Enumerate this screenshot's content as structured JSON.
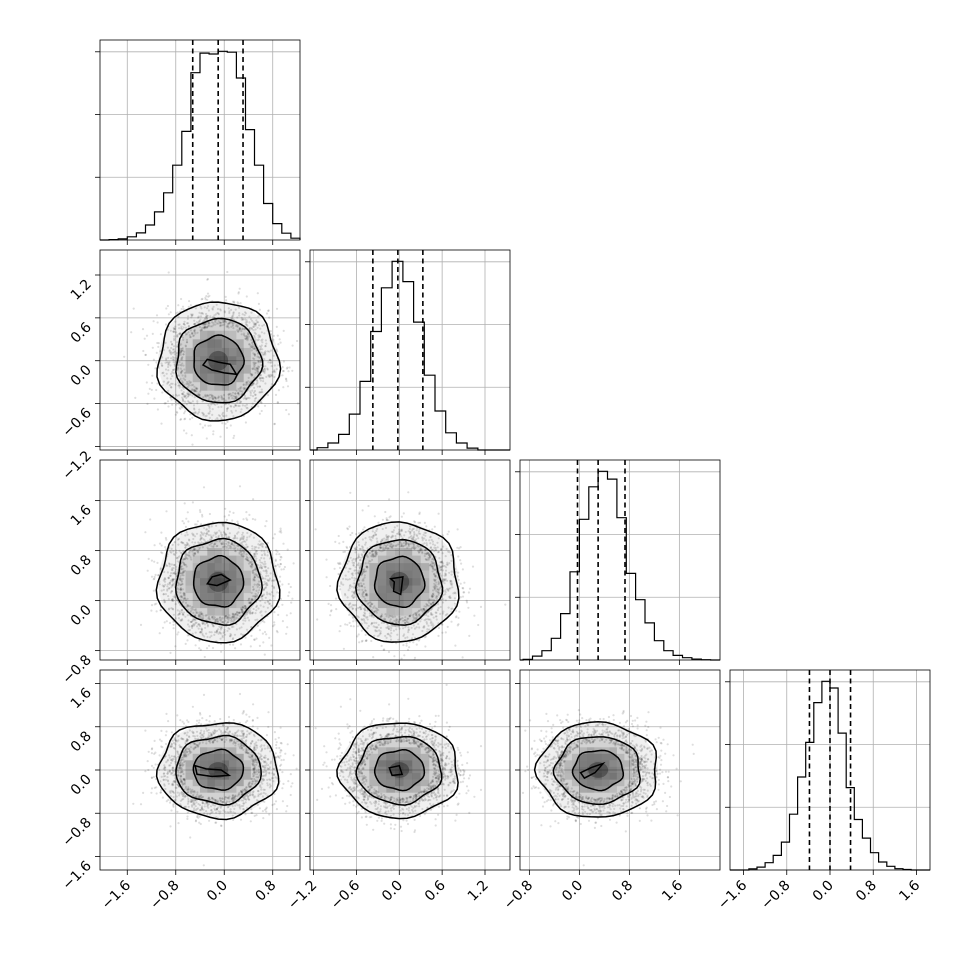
{
  "chart_data": {
    "type": "corner",
    "title": "",
    "grid": true,
    "colors": {
      "line": "#000000",
      "grid": "#b0b0b0",
      "points": "#000000",
      "density": "#000000"
    },
    "parameters": [
      {
        "index": 0,
        "range": [
          -2.05,
          1.25
        ],
        "ticks": [
          -1.6,
          -0.8,
          0.0,
          0.8
        ],
        "tick_labels": [
          "−1.6",
          "−0.8",
          "0.0",
          "0.8"
        ],
        "mean": -0.1,
        "std": 0.41,
        "quantiles": [
          -0.52,
          -0.1,
          0.31
        ],
        "histogram": {
          "edges": [
            -1.9,
            -1.75,
            -1.6,
            -1.45,
            -1.3,
            -1.15,
            -1.0,
            -0.85,
            -0.7,
            -0.55,
            -0.4,
            -0.25,
            -0.1,
            0.05,
            0.2,
            0.35,
            0.5,
            0.65,
            0.8,
            0.95,
            1.1,
            1.25
          ],
          "counts": [
            2,
            6,
            18,
            40,
            84,
            158,
            265,
            420,
            610,
            940,
            1050,
            1045,
            1060,
            1055,
            910,
            620,
            420,
            205,
            92,
            38,
            10
          ]
        }
      },
      {
        "index": 1,
        "range": [
          -1.25,
          1.55
        ],
        "ticks": [
          -1.2,
          -0.6,
          0.0,
          0.6,
          1.2
        ],
        "tick_labels": [
          "−1.2",
          "−0.6",
          "0.0",
          "0.6",
          "1.2"
        ],
        "mean": 0.0,
        "std": 0.35,
        "quantiles": [
          -0.37,
          -0.02,
          0.33
        ],
        "histogram": {
          "edges": [
            -1.15,
            -1.0,
            -0.85,
            -0.7,
            -0.55,
            -0.4,
            -0.25,
            -0.1,
            0.05,
            0.2,
            0.35,
            0.5,
            0.65,
            0.8,
            0.95,
            1.1
          ],
          "counts": [
            15,
            45,
            100,
            230,
            440,
            760,
            1040,
            1210,
            1080,
            820,
            480,
            250,
            110,
            45,
            12
          ]
        }
      },
      {
        "index": 2,
        "range": [
          -0.95,
          2.25
        ],
        "ticks": [
          -0.8,
          0.0,
          0.8,
          1.6
        ],
        "tick_labels": [
          "−0.8",
          "0.0",
          "0.8",
          "1.6"
        ],
        "mean": 0.3,
        "std": 0.4,
        "quantiles": [
          -0.03,
          0.3,
          0.73
        ],
        "histogram": {
          "edges": [
            -0.9,
            -0.75,
            -0.6,
            -0.45,
            -0.3,
            -0.15,
            0.0,
            0.15,
            0.3,
            0.45,
            0.6,
            0.75,
            0.9,
            1.05,
            1.2,
            1.35,
            1.5,
            1.65,
            1.8,
            1.95,
            2.1
          ],
          "counts": [
            4,
            25,
            60,
            140,
            300,
            570,
            910,
            1120,
            1220,
            1170,
            920,
            560,
            390,
            240,
            125,
            60,
            30,
            15,
            6,
            2
          ]
        }
      },
      {
        "index": 3,
        "range": [
          -1.85,
          1.85
        ],
        "ticks": [
          -1.6,
          -0.8,
          0.0,
          0.8,
          1.6
        ],
        "tick_labels": [
          "−1.6",
          "−0.8",
          "0.0",
          "0.8",
          "1.6"
        ],
        "mean": 0.0,
        "std": 0.37,
        "quantiles": [
          -0.38,
          0.0,
          0.38
        ],
        "histogram": {
          "edges": [
            -1.5,
            -1.35,
            -1.2,
            -1.05,
            -0.9,
            -0.75,
            -0.6,
            -0.45,
            -0.3,
            -0.15,
            0.0,
            0.15,
            0.3,
            0.45,
            0.6,
            0.75,
            0.9,
            1.05,
            1.2,
            1.35,
            1.5
          ],
          "counts": [
            8,
            22,
            55,
            110,
            210,
            420,
            700,
            960,
            1260,
            1420,
            1370,
            1030,
            620,
            380,
            240,
            130,
            60,
            28,
            10,
            4
          ]
        }
      }
    ],
    "pairs": [
      {
        "x": 0,
        "y": 1,
        "n_points": 3200,
        "cov": [
          [
            0.17,
            0.0
          ],
          [
            0.0,
            0.12
          ]
        ],
        "contour_levels": [
          0.4,
          1.0,
          1.7,
          2.4
        ],
        "inner_blob": [
          [
            -0.35,
            -0.06
          ],
          [
            -0.2,
            -0.13
          ],
          [
            0.0,
            -0.17
          ],
          [
            0.2,
            -0.19
          ],
          [
            0.1,
            -0.05
          ],
          [
            -0.1,
            -0.02
          ],
          [
            -0.28,
            0.02
          ]
        ]
      },
      {
        "x": 0,
        "y": 2,
        "n_points": 3200,
        "cov": [
          [
            0.17,
            0.0
          ],
          [
            0.0,
            0.16
          ]
        ],
        "contour_levels": [
          0.4,
          1.0,
          1.7,
          2.4
        ],
        "inner_blob": [
          [
            -0.28,
            0.27
          ],
          [
            -0.12,
            0.24
          ],
          [
            0.1,
            0.33
          ],
          [
            -0.05,
            0.42
          ],
          [
            -0.2,
            0.38
          ]
        ]
      },
      {
        "x": 1,
        "y": 2,
        "n_points": 3200,
        "cov": [
          [
            0.12,
            0.0
          ],
          [
            0.0,
            0.16
          ]
        ],
        "contour_levels": [
          0.4,
          1.0,
          1.7,
          2.4
        ],
        "inner_blob": [
          [
            -0.12,
            0.35
          ],
          [
            0.05,
            0.38
          ],
          [
            0.02,
            0.1
          ],
          [
            -0.08,
            0.15
          ],
          [
            -0.07,
            0.3
          ]
        ]
      },
      {
        "x": 0,
        "y": 3,
        "n_points": 3200,
        "cov": [
          [
            0.17,
            0.0
          ],
          [
            0.0,
            0.135
          ]
        ],
        "contour_levels": [
          0.4,
          1.0,
          1.7,
          2.4
        ],
        "inner_blob": [
          [
            -0.48,
            0.08
          ],
          [
            -0.3,
            0.02
          ],
          [
            -0.05,
            0.0
          ],
          [
            0.08,
            -0.1
          ],
          [
            -0.2,
            -0.12
          ],
          [
            -0.45,
            -0.08
          ]
        ]
      },
      {
        "x": 1,
        "y": 3,
        "n_points": 3200,
        "cov": [
          [
            0.12,
            0.0
          ],
          [
            0.0,
            0.135
          ]
        ],
        "contour_levels": [
          0.4,
          1.0,
          1.7,
          2.4
        ],
        "inner_blob": [
          [
            -0.14,
            0.04
          ],
          [
            0.0,
            0.08
          ],
          [
            0.04,
            -0.08
          ],
          [
            -0.1,
            -0.1
          ]
        ]
      },
      {
        "x": 2,
        "y": 3,
        "n_points": 3200,
        "cov": [
          [
            0.16,
            0.0
          ],
          [
            0.0,
            0.135
          ]
        ],
        "contour_levels": [
          0.4,
          1.0,
          1.7,
          2.4
        ],
        "inner_blob": [
          [
            0.02,
            -0.05
          ],
          [
            0.2,
            0.05
          ],
          [
            0.38,
            0.12
          ],
          [
            0.25,
            -0.05
          ],
          [
            0.08,
            -0.15
          ]
        ]
      }
    ]
  }
}
